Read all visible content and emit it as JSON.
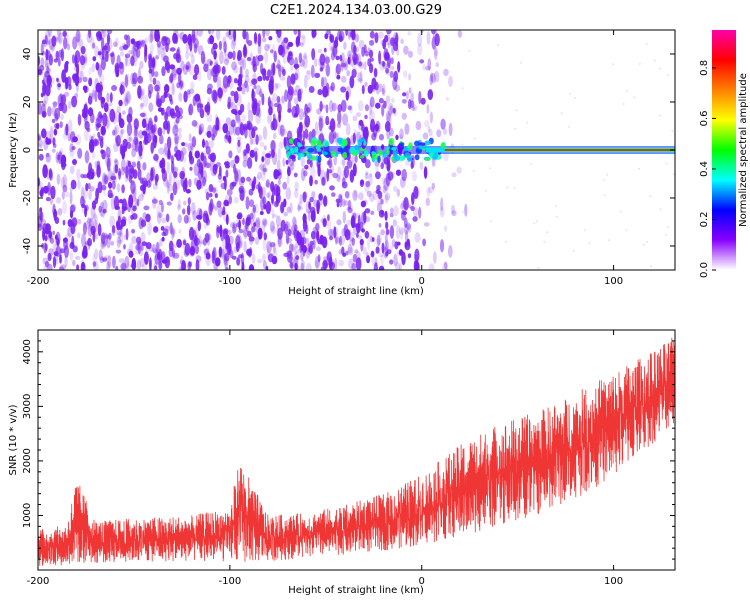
{
  "title": "C2E1.2024.134.03.00.G29",
  "colors": {
    "snr_line": "#f03535",
    "spectrum_noise": "#7a22ee",
    "signal_core": "#e82020",
    "frame": "#000000"
  },
  "chart_data": [
    {
      "type": "heatmap",
      "xlabel": "Height of straight line (km)",
      "ylabel": "Frequency (Hz)",
      "xlim": [
        -200,
        132
      ],
      "ylim": [
        -50,
        50
      ],
      "xticks": [
        -200,
        -100,
        0,
        100
      ],
      "yticks": [
        -40,
        -20,
        0,
        20,
        40
      ],
      "colorbar": {
        "label": "Normalized spectral amplitude",
        "range": [
          0,
          0.95
        ],
        "ticks": [
          "0.0",
          "0.2",
          "0.4",
          "0.6",
          "0.8"
        ],
        "tick_values": [
          0.0,
          0.2,
          0.4,
          0.6,
          0.8
        ],
        "colormap": [
          "#ffffff",
          "#8800ff",
          "#0000ff",
          "#00ffff",
          "#00ff00",
          "#ffff00",
          "#ff8000",
          "#ff0000",
          "#ff00aa"
        ]
      },
      "signal_band": {
        "frequency": 0,
        "from_km": -70,
        "to_km": 132,
        "strong_from_km": 12
      },
      "noise_region": {
        "dense_until_km": -25,
        "sparse_until_km": 20
      }
    },
    {
      "type": "line",
      "xlabel": "Height of straight line (km)",
      "ylabel": "SNR (10 * v/v)",
      "xlim": [
        -200,
        132
      ],
      "ylim": [
        0,
        4400
      ],
      "xticks": [
        -200,
        -100,
        0,
        100
      ],
      "yticks": [
        1000,
        2000,
        3000,
        4000
      ],
      "series": [
        {
          "x": [
            -200,
            -190,
            -185,
            -180,
            -170,
            -150,
            -120,
            -100,
            -95,
            -80,
            -60,
            -40,
            -20,
            0,
            20,
            40,
            60,
            80,
            100,
            120,
            132
          ],
          "low": [
            60,
            80,
            90,
            100,
            120,
            150,
            150,
            150,
            120,
            160,
            220,
            280,
            350,
            450,
            600,
            800,
            1000,
            1300,
            1700,
            2300,
            2700
          ],
          "high": [
            750,
            800,
            850,
            1700,
            900,
            950,
            1000,
            1150,
            2050,
            1000,
            1050,
            1200,
            1400,
            1750,
            2300,
            2700,
            2900,
            3250,
            3650,
            4000,
            4300
          ]
        }
      ]
    }
  ]
}
